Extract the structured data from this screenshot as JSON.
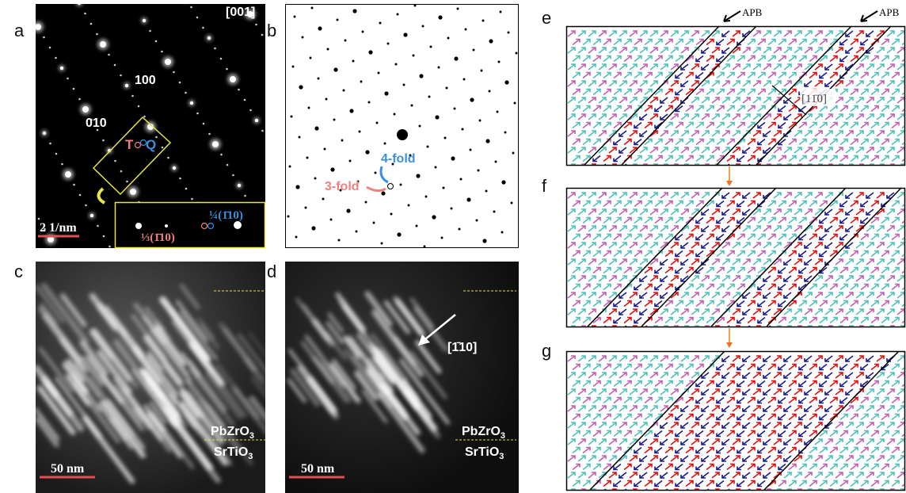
{
  "panel_labels": [
    "a",
    "b",
    "c",
    "d",
    "e",
    "f",
    "g"
  ],
  "a": {
    "zone": "[001]",
    "spot_100": "100",
    "spot_010": "010",
    "t": "T",
    "q": "Q",
    "quarter": "¼(1̄10)",
    "third": "⅓(1̄10)",
    "scale": "2 1/nm"
  },
  "b": {
    "four_fold": "4-fold",
    "three_fold": "3-fold"
  },
  "c": {
    "top": {
      "text": "PbZrO",
      "sub": "3"
    },
    "bottom": {
      "text": "SrTiO",
      "sub": "3"
    },
    "scale": "50 nm"
  },
  "d": {
    "top": {
      "text": "PbZrO",
      "sub": "3"
    },
    "bottom": {
      "text": "SrTiO",
      "sub": "3"
    },
    "scale": "50 nm",
    "direction": "[1̄10]"
  },
  "e": {
    "apb_1": "APB",
    "apb_2": "APB",
    "direction": "[11̄0]"
  }
}
